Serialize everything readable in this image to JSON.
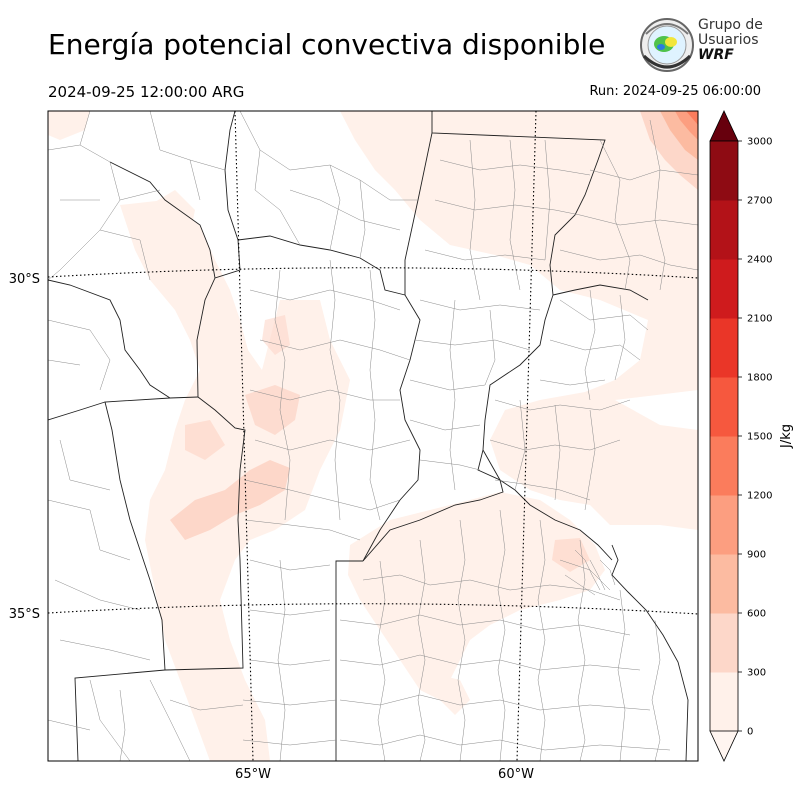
{
  "header": {
    "title": "Energía potencial convectiva disponible",
    "valid_time": "2024-09-25 12:00:00 ARG",
    "run_time": "Run: 2024-09-25 06:00:00"
  },
  "logo": {
    "line1": "Grupo de",
    "line2": "Usuarios",
    "line3": "WRF"
  },
  "map": {
    "lat_labels": [
      "30°S",
      "35°S"
    ],
    "lon_labels": [
      "65°W",
      "60°W"
    ]
  },
  "colorbar": {
    "unit": "J/kg",
    "ticks": [
      "0",
      "300",
      "600",
      "900",
      "1200",
      "1500",
      "1800",
      "2100",
      "2400",
      "2700",
      "3000"
    ],
    "colors": [
      "#fff1ea",
      "#fdd7c9",
      "#fcbba1",
      "#fc9e80",
      "#fb7c5c",
      "#f6583e",
      "#ea3628",
      "#cf1b1d",
      "#b31218",
      "#8e0b13",
      "#67000d"
    ]
  }
}
